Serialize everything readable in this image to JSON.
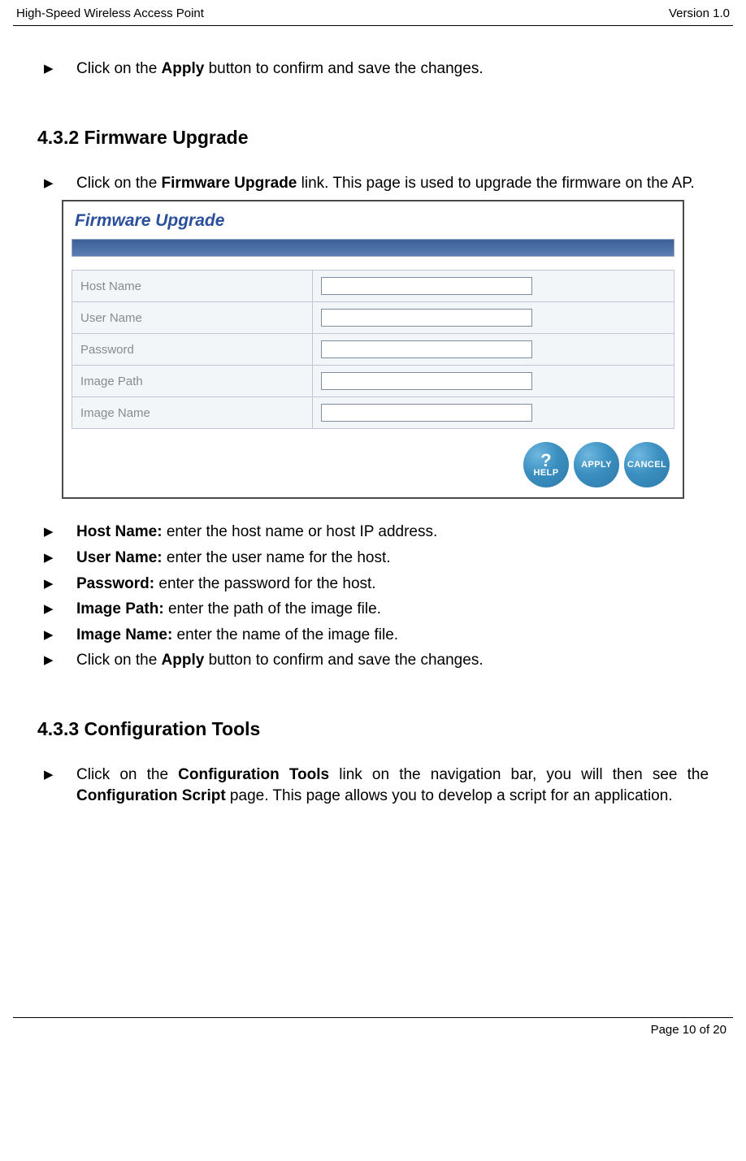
{
  "header": {
    "left": "High-Speed Wireless Access Point",
    "right": "Version 1.0"
  },
  "intro_bullet": {
    "prefix": "Click on the ",
    "bold": "Apply",
    "suffix": " button to confirm and save the changes."
  },
  "section432": {
    "heading": "4.3.2   Firmware Upgrade",
    "bullet": {
      "prefix": "Click on the ",
      "bold": "Firmware Upgrade",
      "suffix": " link. This page is used to upgrade the firmware on the AP."
    }
  },
  "screenshot": {
    "title": "Firmware Upgrade",
    "rows": [
      {
        "label": "Host Name"
      },
      {
        "label": "User Name"
      },
      {
        "label": "Password"
      },
      {
        "label": "Image Path"
      },
      {
        "label": "Image Name"
      }
    ],
    "buttons": {
      "help": "HELP",
      "apply": "APPLY",
      "cancel": "CANCEL"
    }
  },
  "field_bullets": [
    {
      "label": "Host Name:",
      "desc": " enter the host name or host IP address."
    },
    {
      "label": "User Name:",
      "desc": " enter the user name for the host."
    },
    {
      "label": "Password:",
      "desc": "  enter the password for the host."
    },
    {
      "label": "Image Path:",
      "desc": " enter the path of the image file."
    },
    {
      "label": "Image Name:",
      "desc": " enter the name of the image file."
    }
  ],
  "apply_bullet": {
    "prefix": "Click on the ",
    "bold": "Apply",
    "suffix": " button to confirm and save the changes."
  },
  "section433": {
    "heading": "4.3.3  Configuration Tools",
    "bullet": {
      "p1": "Click on the ",
      "b1": "Configuration Tools",
      "p2": " link on the navigation bar, you will then see the ",
      "b2": "Configuration Script",
      "p3": " page. This page allows you to develop a script for an application."
    }
  },
  "footer": "Page 10 of 20"
}
